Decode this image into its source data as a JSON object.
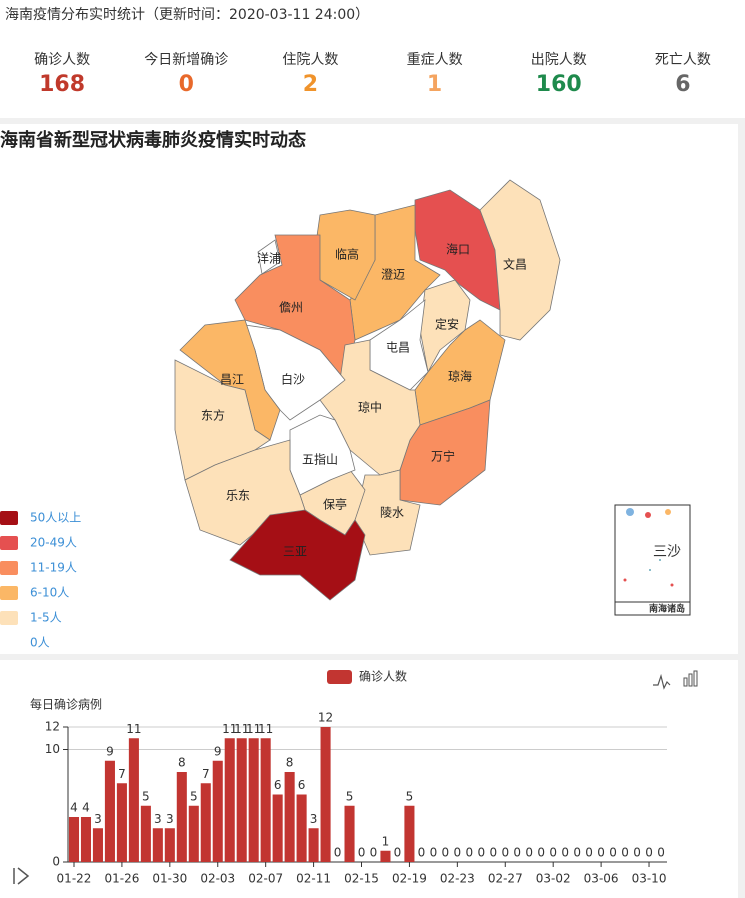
{
  "header": {
    "title": "海南疫情分布实时统计（更新时间：2020-03-11 24:00）"
  },
  "stats": [
    {
      "label": "确诊人数",
      "value": 168,
      "color": "#c0392b"
    },
    {
      "label": "今日新增确诊",
      "value": 0,
      "color": "#e8692b"
    },
    {
      "label": "住院人数",
      "value": 2,
      "color": "#f0932b"
    },
    {
      "label": "重症人数",
      "value": 1,
      "color": "#f4a460"
    },
    {
      "label": "出院人数",
      "value": 160,
      "color": "#1e8a4c"
    },
    {
      "label": "死亡人数",
      "value": 6,
      "color": "#666666"
    }
  ],
  "map": {
    "title": "海南省新型冠状病毒肺炎疫情实时动态",
    "legend": [
      {
        "label": "50人以上",
        "color": "#a50f15"
      },
      {
        "label": "20-49人",
        "color": "#e55050"
      },
      {
        "label": "11-19人",
        "color": "#f98e5f"
      },
      {
        "label": "6-10人",
        "color": "#fbb766"
      },
      {
        "label": "1-5人",
        "color": "#fde1b9"
      },
      {
        "label": "0人",
        "color": "#ffffff"
      }
    ],
    "regions": [
      {
        "name": "海口",
        "color": "#e55050"
      },
      {
        "name": "文昌",
        "color": "#fde1b9"
      },
      {
        "name": "澄迈",
        "color": "#fbb766"
      },
      {
        "name": "临高",
        "color": "#fbb766"
      },
      {
        "name": "洋浦",
        "color": "#ffffff"
      },
      {
        "name": "儋州",
        "color": "#f98e5f"
      },
      {
        "name": "定安",
        "color": "#fde1b9"
      },
      {
        "name": "屯昌",
        "color": "#ffffff"
      },
      {
        "name": "琼海",
        "color": "#fbb766"
      },
      {
        "name": "万宁",
        "color": "#f98e5f"
      },
      {
        "name": "琼中",
        "color": "#fde1b9"
      },
      {
        "name": "陵水",
        "color": "#fde1b9"
      },
      {
        "name": "保亭",
        "color": "#fde1b9"
      },
      {
        "name": "五指山",
        "color": "#ffffff"
      },
      {
        "name": "白沙",
        "color": "#ffffff"
      },
      {
        "name": "昌江",
        "color": "#fbb766"
      },
      {
        "name": "东方",
        "color": "#fde1b9"
      },
      {
        "name": "乐东",
        "color": "#fde1b9"
      },
      {
        "name": "三亚",
        "color": "#a50f15"
      }
    ],
    "inset": {
      "label": "三沙",
      "caption": "南海诸岛"
    }
  },
  "chart_data": {
    "type": "bar",
    "y_axis_label": "每日确诊病例",
    "categories": [
      "01-22",
      null,
      null,
      null,
      "01-26",
      null,
      null,
      null,
      "01-30",
      null,
      null,
      null,
      "02-03",
      null,
      null,
      null,
      "02-07",
      null,
      null,
      null,
      "02-11",
      null,
      null,
      null,
      "02-15",
      null,
      null,
      null,
      "02-19",
      null,
      null,
      null,
      "02-23",
      null,
      null,
      null,
      "02-27",
      null,
      null,
      null,
      "03-02",
      null,
      null,
      null,
      "03-06",
      null,
      null,
      null,
      "03-10",
      null
    ],
    "series": [
      {
        "name": "确诊人数",
        "color": "#c23531",
        "values": [
          4,
          4,
          3,
          9,
          7,
          11,
          5,
          3,
          3,
          8,
          5,
          7,
          9,
          11,
          11,
          11,
          11,
          6,
          8,
          6,
          3,
          12,
          0,
          5,
          0,
          0,
          1,
          0,
          5,
          0,
          0,
          0,
          0,
          0,
          0,
          0,
          0,
          0,
          0,
          0,
          0,
          0,
          0,
          0,
          0,
          0,
          0,
          0,
          0,
          0
        ]
      }
    ],
    "ylim": [
      0,
      12
    ],
    "yticks": [
      0,
      10,
      12
    ],
    "grid": true
  }
}
